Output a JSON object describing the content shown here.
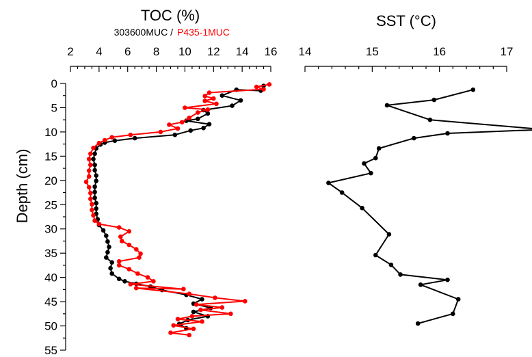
{
  "chart_data": {
    "type": "line",
    "ylabel": "Depth (cm)",
    "yticks": [
      0,
      5,
      10,
      15,
      20,
      25,
      30,
      35,
      40,
      45,
      50,
      55
    ],
    "ylim": [
      0,
      55
    ],
    "y_inverted": true,
    "panels": [
      {
        "title": "TOC (%)",
        "xlim": [
          2,
          16
        ],
        "xticks": [
          2,
          4,
          6,
          8,
          10,
          12,
          14,
          16
        ],
        "legend": [
          {
            "label": "303600MUC /",
            "color": "#000000"
          },
          {
            "label": "P435-1MUC",
            "color": "#ff0000"
          }
        ],
        "series": [
          {
            "color": "#000000",
            "points": [
              [
                15.5,
                0.5
              ],
              [
                15.3,
                1.5
              ],
              [
                13.6,
                1.3
              ],
              [
                12.6,
                2.5
              ],
              [
                13.9,
                3.5
              ],
              [
                13.3,
                4.6
              ],
              [
                11.3,
                5.5
              ],
              [
                11.6,
                6.2
              ],
              [
                10.9,
                7.3
              ],
              [
                10.1,
                7.7
              ],
              [
                11.7,
                8.4
              ],
              [
                11.3,
                9.2
              ],
              [
                10.4,
                9.7
              ],
              [
                9.3,
                10.6
              ],
              [
                6.5,
                11.3
              ],
              [
                5.1,
                11.8
              ],
              [
                4.4,
                12.2
              ],
              [
                4.1,
                12.6
              ],
              [
                3.8,
                13.4
              ],
              [
                3.7,
                14.5
              ],
              [
                3.6,
                15.6
              ],
              [
                3.7,
                16.8
              ],
              [
                3.7,
                17.9
              ],
              [
                3.8,
                19.0
              ],
              [
                3.8,
                20.1
              ],
              [
                3.7,
                21.3
              ],
              [
                3.7,
                22.4
              ],
              [
                3.7,
                23.6
              ],
              [
                3.8,
                24.7
              ],
              [
                3.8,
                25.8
              ],
              [
                3.8,
                26.9
              ],
              [
                3.9,
                28.0
              ],
              [
                4.0,
                29.2
              ],
              [
                4.3,
                30.3
              ],
              [
                4.5,
                31.4
              ],
              [
                4.6,
                32.6
              ],
              [
                4.7,
                33.7
              ],
              [
                4.6,
                34.8
              ],
              [
                4.5,
                35.9
              ],
              [
                4.9,
                36.9
              ],
              [
                4.8,
                38.1
              ],
              [
                4.9,
                39.2
              ],
              [
                5.4,
                40.3
              ],
              [
                5.8,
                40.8
              ],
              [
                6.6,
                41.3
              ],
              [
                7.6,
                41.9
              ],
              [
                8.4,
                42.6
              ],
              [
                10.1,
                43.6
              ],
              [
                11.2,
                44.5
              ],
              [
                10.6,
                45.4
              ],
              [
                11.8,
                46.3
              ],
              [
                10.6,
                47.1
              ],
              [
                11.6,
                48.0
              ],
              [
                10.2,
                48.8
              ],
              [
                9.6,
                49.6
              ],
              [
                10.1,
                50.5
              ]
            ]
          },
          {
            "color": "#ff0000",
            "points": [
              [
                15.9,
                0.2
              ],
              [
                15.0,
                0.7
              ],
              [
                15.5,
                1.2
              ],
              [
                11.7,
                1.9
              ],
              [
                11.4,
                2.6
              ],
              [
                12.0,
                3.1
              ],
              [
                11.4,
                3.6
              ],
              [
                12.2,
                4.2
              ],
              [
                10.0,
                5.0
              ],
              [
                11.6,
                5.4
              ],
              [
                10.9,
                6.0
              ],
              [
                10.3,
                7.1
              ],
              [
                9.8,
                8.0
              ],
              [
                8.9,
                8.5
              ],
              [
                9.5,
                9.3
              ],
              [
                8.3,
                10.0
              ],
              [
                6.2,
                10.6
              ],
              [
                4.9,
                11.1
              ],
              [
                4.4,
                11.7
              ],
              [
                4.0,
                12.3
              ],
              [
                3.6,
                13.3
              ],
              [
                3.4,
                14.5
              ],
              [
                3.3,
                15.6
              ],
              [
                3.4,
                16.8
              ],
              [
                3.3,
                18.0
              ],
              [
                3.3,
                19.2
              ],
              [
                3.1,
                20.3
              ],
              [
                3.3,
                21.4
              ],
              [
                3.4,
                22.6
              ],
              [
                3.4,
                23.8
              ],
              [
                3.5,
                24.9
              ],
              [
                3.5,
                26.1
              ],
              [
                3.6,
                27.2
              ],
              [
                3.7,
                28.3
              ],
              [
                4.0,
                29.0
              ],
              [
                5.4,
                29.7
              ],
              [
                6.1,
                30.5
              ],
              [
                5.5,
                31.6
              ],
              [
                5.6,
                32.5
              ],
              [
                6.1,
                33.3
              ],
              [
                6.6,
                34.2
              ],
              [
                6.9,
                35.1
              ],
              [
                6.8,
                35.9
              ],
              [
                5.4,
                36.7
              ],
              [
                5.4,
                37.5
              ],
              [
                6.1,
                38.3
              ],
              [
                6.7,
                39.2
              ],
              [
                7.4,
                40.0
              ],
              [
                7.8,
                40.8
              ],
              [
                6.2,
                41.4
              ],
              [
                9.9,
                42.4
              ],
              [
                6.6,
                42.2
              ],
              [
                10.3,
                43.4
              ],
              [
                12.1,
                44.2
              ],
              [
                14.2,
                44.9
              ],
              [
                10.8,
                45.6
              ],
              [
                12.6,
                46.2
              ],
              [
                11.1,
                46.7
              ],
              [
                13.2,
                47.5
              ],
              [
                10.5,
                48.0
              ],
              [
                9.5,
                48.6
              ],
              [
                11.2,
                49.1
              ],
              [
                9.2,
                49.9
              ],
              [
                10.6,
                50.6
              ],
              [
                9.0,
                51.4
              ],
              [
                10.3,
                51.9
              ]
            ]
          }
        ]
      },
      {
        "title": "SST (°C)",
        "xlim": [
          14,
          17
        ],
        "xticks": [
          14,
          15,
          16,
          17
        ],
        "series": [
          {
            "color": "#000000",
            "points": [
              [
                16.5,
                1.3
              ],
              [
                15.92,
                3.4
              ],
              [
                15.22,
                4.5
              ],
              [
                15.86,
                7.5
              ],
              [
                17.55,
                9.5
              ],
              [
                16.12,
                10.3
              ],
              [
                15.62,
                11.3
              ],
              [
                15.1,
                13.4
              ],
              [
                15.05,
                15.4
              ],
              [
                14.88,
                16.5
              ],
              [
                14.98,
                18.5
              ],
              [
                14.35,
                20.5
              ],
              [
                14.55,
                22.5
              ],
              [
                14.85,
                25.7
              ],
              [
                15.25,
                31.1
              ],
              [
                15.05,
                35.4
              ],
              [
                15.28,
                37.4
              ],
              [
                15.42,
                39.4
              ],
              [
                16.12,
                40.5
              ],
              [
                15.72,
                41.5
              ],
              [
                16.28,
                44.5
              ],
              [
                16.2,
                47.5
              ],
              [
                15.68,
                49.5
              ]
            ]
          }
        ]
      }
    ]
  }
}
